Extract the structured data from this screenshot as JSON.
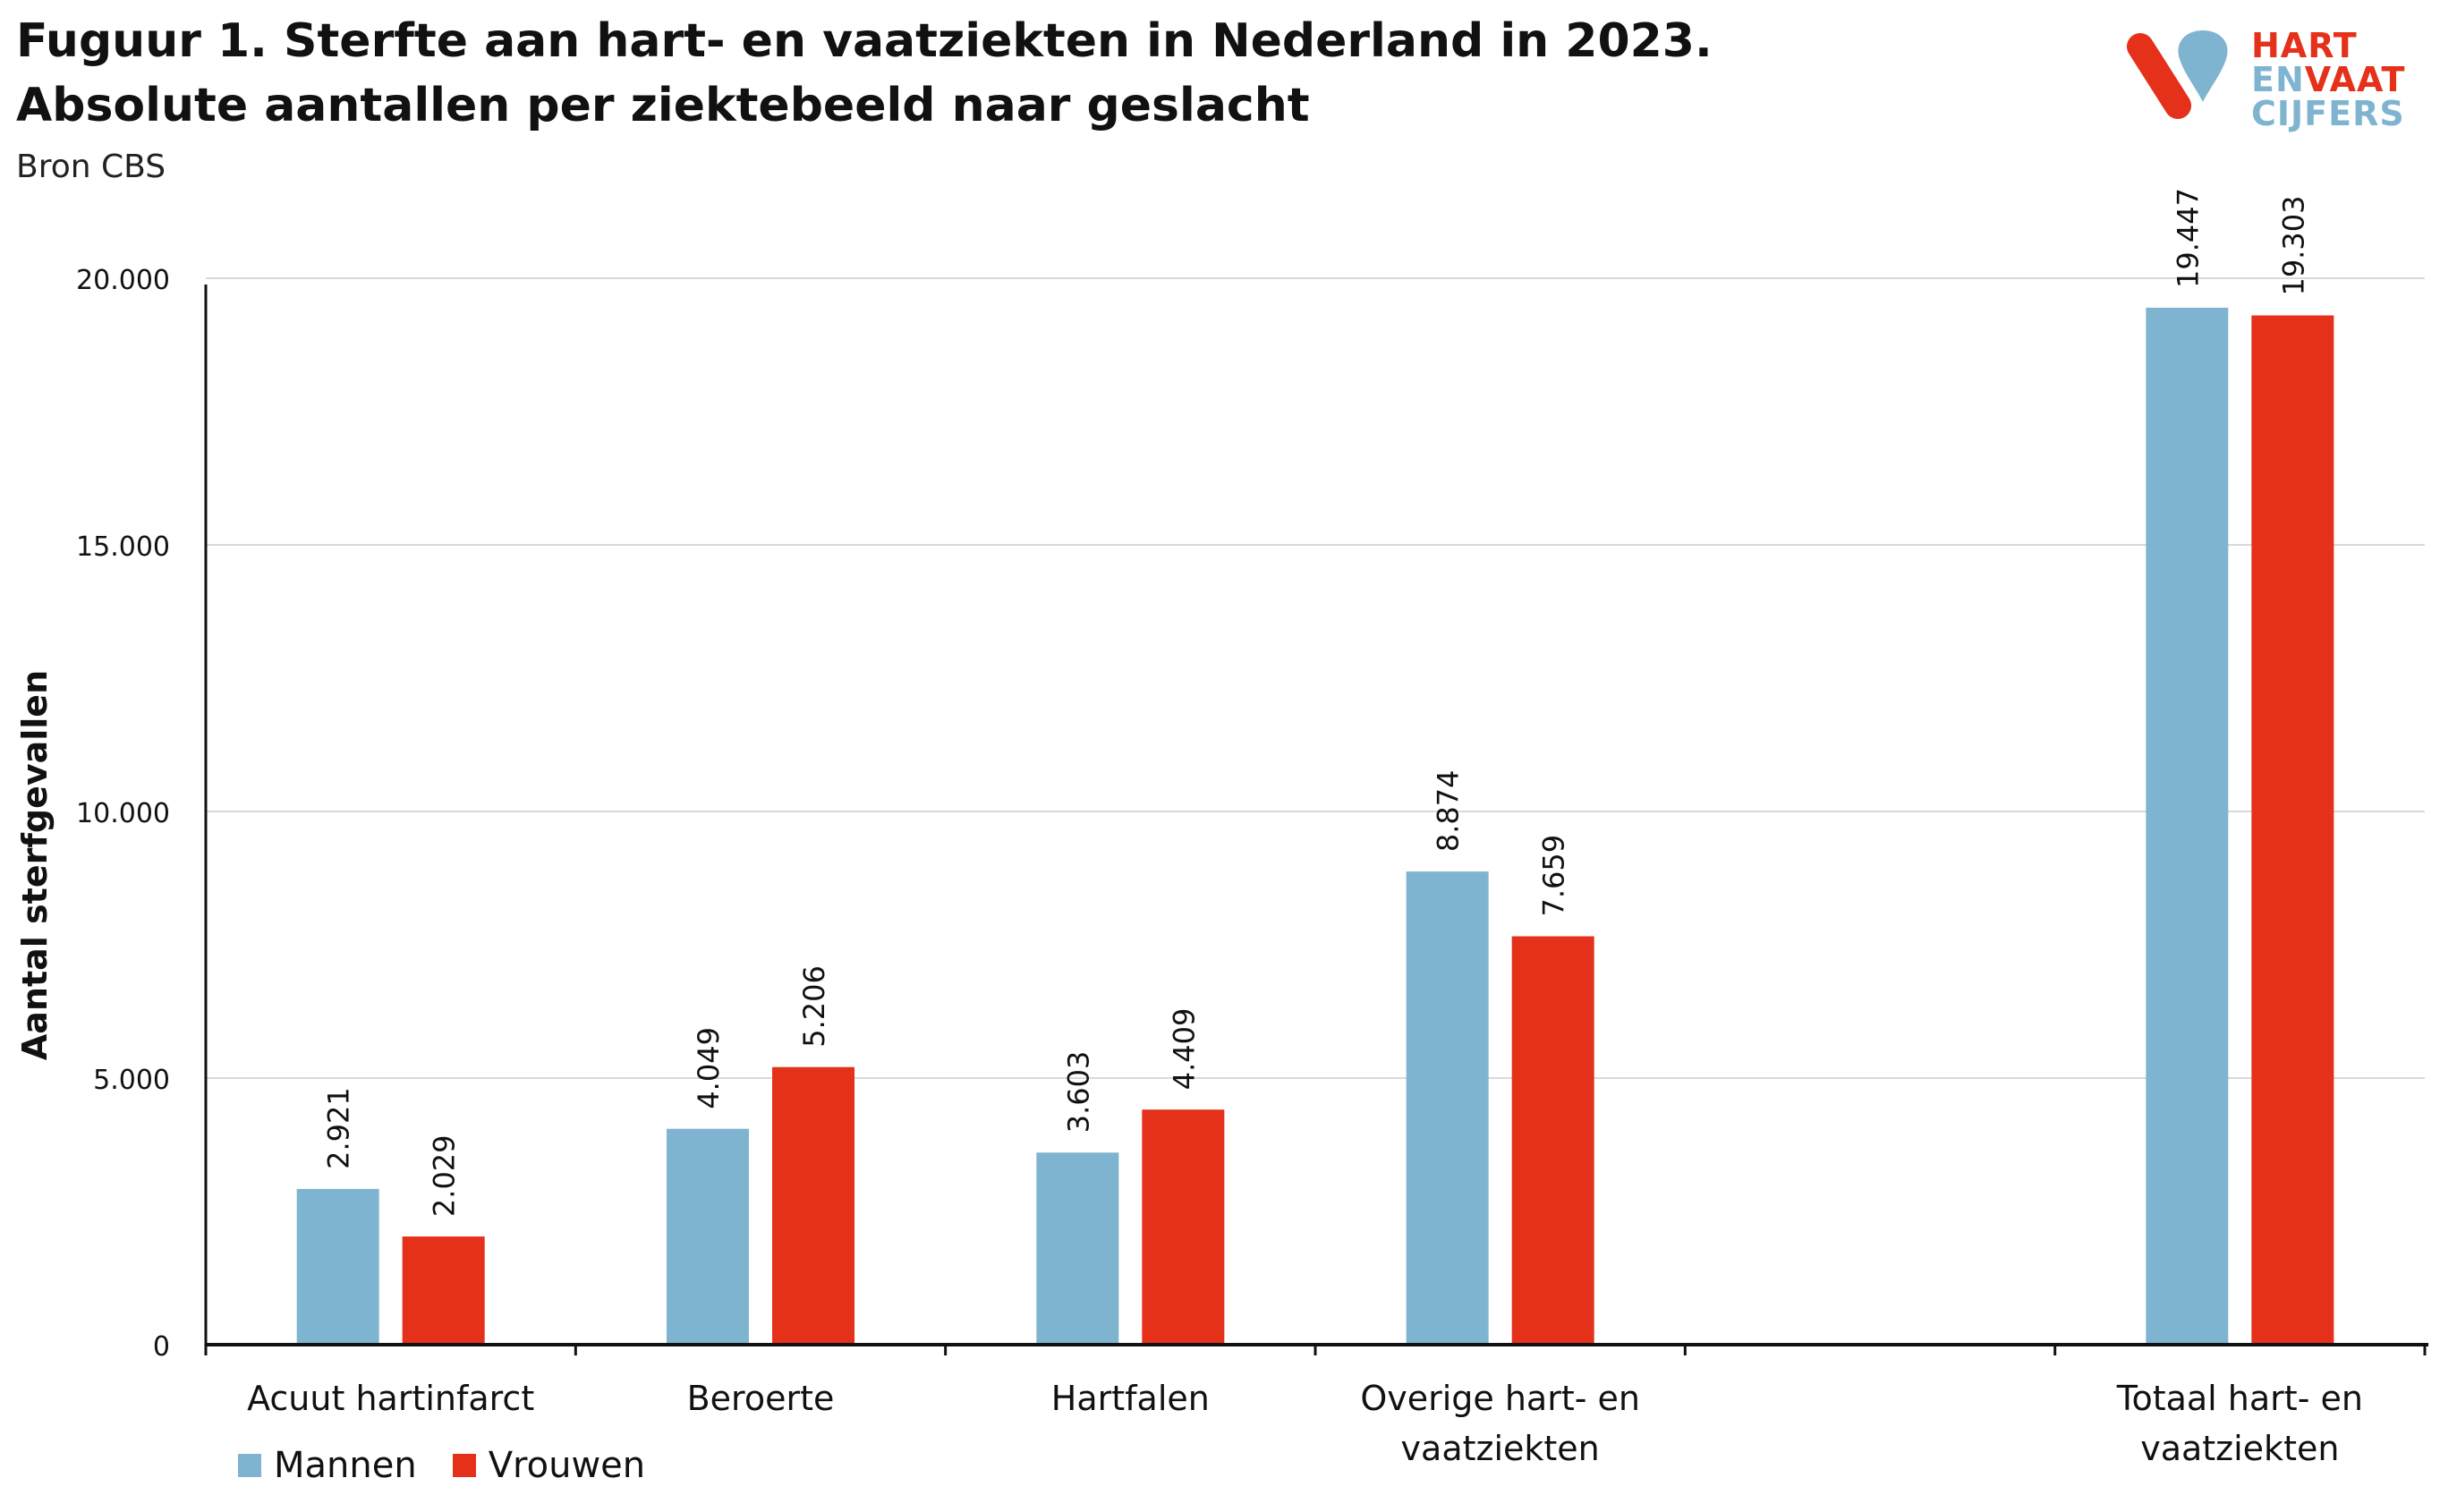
{
  "header": {
    "title": "Fuguur 1. Sterfte aan hart- en vaatziekten in Nederland in 2023. Absolute aantallen per ziektebeeld naar geslacht",
    "source": "Bron CBS"
  },
  "logo": {
    "line1": "HART",
    "line2a": "EN",
    "line2b": "VAAT",
    "line3": "CIJFERS",
    "colors": {
      "red": "#e5301a",
      "blue": "#7fb4d0"
    }
  },
  "colors": {
    "mannen": "#7fb4d0",
    "vrouwen": "#e5301a",
    "grid": "#d9d9d9",
    "axis": "#111111"
  },
  "chart_data": {
    "type": "bar",
    "title": "",
    "xlabel": "",
    "ylabel": "Aantal sterfgevallen",
    "ylim": [
      0,
      21000
    ],
    "yticks": [
      0,
      5000,
      10000,
      15000,
      20000
    ],
    "ytick_labels": [
      "0",
      "5.000",
      "10.000",
      "15.000",
      "20.000"
    ],
    "grid": true,
    "legend_position": "bottom-left",
    "categories": [
      [
        "Acuut hartinfarct"
      ],
      [
        "Beroerte"
      ],
      [
        "Hartfalen"
      ],
      [
        "Overige hart- en",
        "vaatziekten"
      ],
      [],
      [
        "Totaal hart- en",
        "vaatziekten"
      ]
    ],
    "series": [
      {
        "name": "Mannen",
        "color": "#7fb4d0",
        "values": [
          2921,
          4049,
          3603,
          8874,
          null,
          19447
        ],
        "labels": [
          "2.921",
          "4.049",
          "3.603",
          "8.874",
          "",
          "19.447"
        ]
      },
      {
        "name": "Vrouwen",
        "color": "#e5301a",
        "values": [
          2029,
          5206,
          4409,
          7659,
          null,
          19303
        ],
        "labels": [
          "2.029",
          "5.206",
          "4.409",
          "7.659",
          "",
          "19.303"
        ]
      }
    ]
  }
}
